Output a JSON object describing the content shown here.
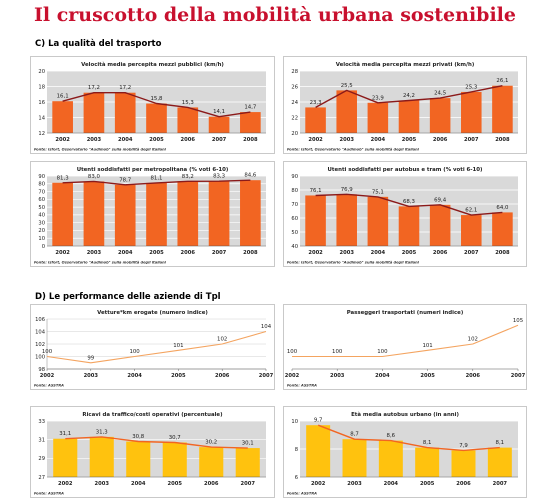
{
  "page": {
    "title": "Il cruscotto della mobilità urbana sostenibile",
    "section_c": "C) La qualità del trasporto",
    "section_d": "D) Le performance delle aziende di Tpl"
  },
  "chart_data": [
    {
      "id": "c1",
      "type": "bar",
      "title": "Velocità media percepita mezzi pubblici (km/h)",
      "categories": [
        "2002",
        "2003",
        "2004",
        "2005",
        "2006",
        "2007",
        "2008"
      ],
      "values": [
        16.1,
        17.2,
        17.2,
        15.8,
        15.3,
        14.1,
        14.7
      ],
      "labels": [
        "16,1",
        "17,2",
        "17,2",
        "15,8",
        "15,3",
        "14,1",
        "14,7"
      ],
      "ylim": [
        12,
        20
      ],
      "yticks": [
        12,
        14,
        16,
        18,
        20
      ],
      "source": "Fonte: Isfort, Osservatorio \"Audimob\" sulla mobilità degli italiani",
      "bar_color": "#f26522",
      "line_color": "#8b1a1a",
      "bg_color": "#d9d9d9"
    },
    {
      "id": "c2",
      "type": "bar",
      "title": "Velocità media percepita mezzi privati (km/h)",
      "categories": [
        "2002",
        "2003",
        "2004",
        "2005",
        "2006",
        "2007",
        "2008"
      ],
      "values": [
        23.3,
        25.5,
        23.9,
        24.2,
        24.5,
        25.3,
        26.1
      ],
      "labels": [
        "23,3",
        "25,5",
        "23,9",
        "24,2",
        "24,5",
        "25,3",
        "26,1"
      ],
      "ylim": [
        20,
        28
      ],
      "yticks": [
        20,
        22,
        24,
        26,
        28
      ],
      "source": "Fonte: Isfort, Osservatorio \"Audimob\" sulla mobilità degli italiani",
      "bar_color": "#f26522",
      "line_color": "#8b1a1a",
      "bg_color": "#d9d9d9"
    },
    {
      "id": "c3",
      "type": "bar",
      "title": "Utenti soddisfatti per metropolitana (% voti 6-10)",
      "categories": [
        "2002",
        "2003",
        "2004",
        "2005",
        "2006",
        "2007",
        "2008"
      ],
      "values": [
        81.3,
        83.0,
        78.7,
        81.1,
        83.2,
        83.3,
        84.6
      ],
      "labels": [
        "81,3",
        "83,0",
        "78,7",
        "81,1",
        "83,2",
        "83,3",
        "84,6"
      ],
      "ylim": [
        0,
        90
      ],
      "yticks": [
        0,
        10,
        20,
        30,
        40,
        50,
        60,
        70,
        80,
        90
      ],
      "source": "Fonte: Isfort, Osservatorio \"Audimob\" sulla mobilità degli italiani",
      "bar_color": "#f26522",
      "line_color": "#8b1a1a",
      "bg_color": "#d9d9d9"
    },
    {
      "id": "c4",
      "type": "bar",
      "title": "Utenti soddisfatti per autobus e tram (% voti 6-10)",
      "categories": [
        "2002",
        "2003",
        "2004",
        "2005",
        "2006",
        "2007",
        "2008"
      ],
      "values": [
        76.1,
        76.9,
        75.1,
        68.3,
        69.4,
        62.1,
        64.0
      ],
      "labels": [
        "76,1",
        "76,9",
        "75,1",
        "68,3",
        "69,4",
        "62,1",
        "64,0"
      ],
      "ylim": [
        40,
        90
      ],
      "yticks": [
        40,
        50,
        60,
        70,
        80,
        90
      ],
      "source": "Fonte: Isfort, Osservatorio \"Audimob\" sulla mobilità degli italiani",
      "bar_color": "#f26522",
      "line_color": "#8b1a1a",
      "bg_color": "#d9d9d9"
    },
    {
      "id": "d1",
      "type": "line",
      "title": "Vetture*km erogate (numero indice)",
      "categories": [
        "2002",
        "2003",
        "2004",
        "2005",
        "2006",
        "2007"
      ],
      "values": [
        100,
        99,
        100,
        101,
        102,
        104
      ],
      "labels": [
        "100",
        "99",
        "100",
        "101",
        "102",
        "104"
      ],
      "ylim": [
        98,
        106
      ],
      "yticks": [
        98,
        100,
        102,
        104,
        106
      ],
      "source": "Fonte: ASSTRA",
      "line_color": "#f4a460"
    },
    {
      "id": "d2",
      "type": "line",
      "title": "Passeggeri trasportati (numeri indice)",
      "categories": [
        "2002",
        "2003",
        "2004",
        "2005",
        "2006",
        "2007"
      ],
      "values": [
        100,
        100,
        100,
        101,
        102,
        105
      ],
      "labels": [
        "100",
        "100",
        "100",
        "101",
        "102",
        "105"
      ],
      "ylim": [
        98,
        106
      ],
      "source": "Fonte: ASSTRA",
      "line_color": "#f4a460"
    },
    {
      "id": "d3",
      "type": "bar",
      "title": "Ricavi da traffico/costi operativi (percentuale)",
      "categories": [
        "2002",
        "2003",
        "2004",
        "2005",
        "2006",
        "2007"
      ],
      "values": [
        31.1,
        31.3,
        30.8,
        30.7,
        30.2,
        30.1
      ],
      "labels": [
        "31,1",
        "31,3",
        "30,8",
        "30,7",
        "30,2",
        "30,1"
      ],
      "ylim": [
        27,
        33
      ],
      "yticks": [
        27,
        29,
        31,
        33
      ],
      "source": "Fonte: ASSTRA",
      "bar_color": "#ffc20e",
      "line_color": "#f26522",
      "bg_color": "#d9d9d9"
    },
    {
      "id": "d4",
      "type": "bar",
      "title": "Età media autobus urbano (in anni)",
      "categories": [
        "2002",
        "2003",
        "2004",
        "2005",
        "2006",
        "2007"
      ],
      "values": [
        9.7,
        8.7,
        8.6,
        8.1,
        7.9,
        8.1
      ],
      "labels": [
        "9,7",
        "8,7",
        "8,6",
        "8,1",
        "7,9",
        "8,1"
      ],
      "ylim": [
        6,
        10
      ],
      "yticks": [
        6,
        8,
        10
      ],
      "source": "Fonte: ASSTRA",
      "bar_color": "#ffc20e",
      "line_color": "#f26522",
      "bg_color": "#d9d9d9"
    }
  ]
}
